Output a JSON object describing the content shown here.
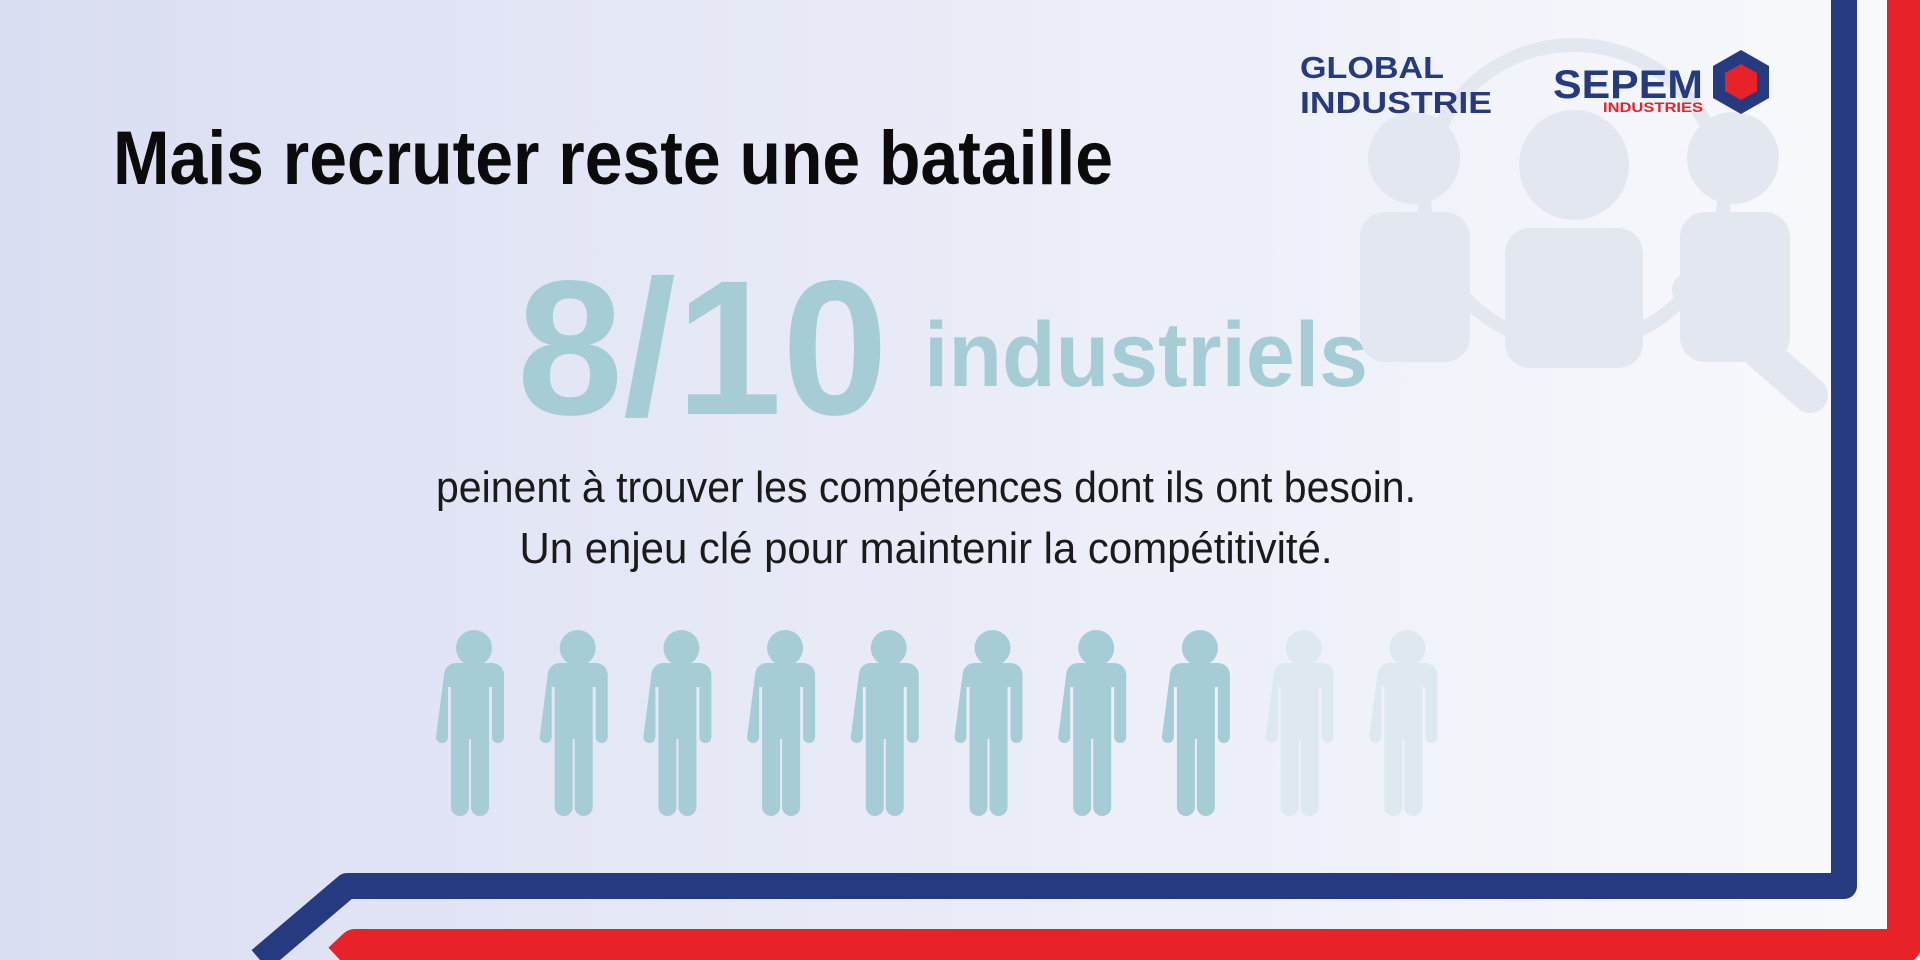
{
  "header": {
    "title": "Mais recruter reste une bataille"
  },
  "logos": {
    "global_industrie": {
      "line1": "GLOBAL",
      "line2": "INDUSTRIE"
    },
    "sepem": {
      "name": "SEPEM",
      "sub": "INDUSTRIES"
    }
  },
  "stat": {
    "figure": "8/10",
    "label": "industriels"
  },
  "body": {
    "lines": [
      "peinent à trouver les compétences dont ils ont besoin.",
      "Un enjeu clé pour maintenir la compétitivité."
    ]
  },
  "pictogram": {
    "filled": 8,
    "total": 10
  }
}
